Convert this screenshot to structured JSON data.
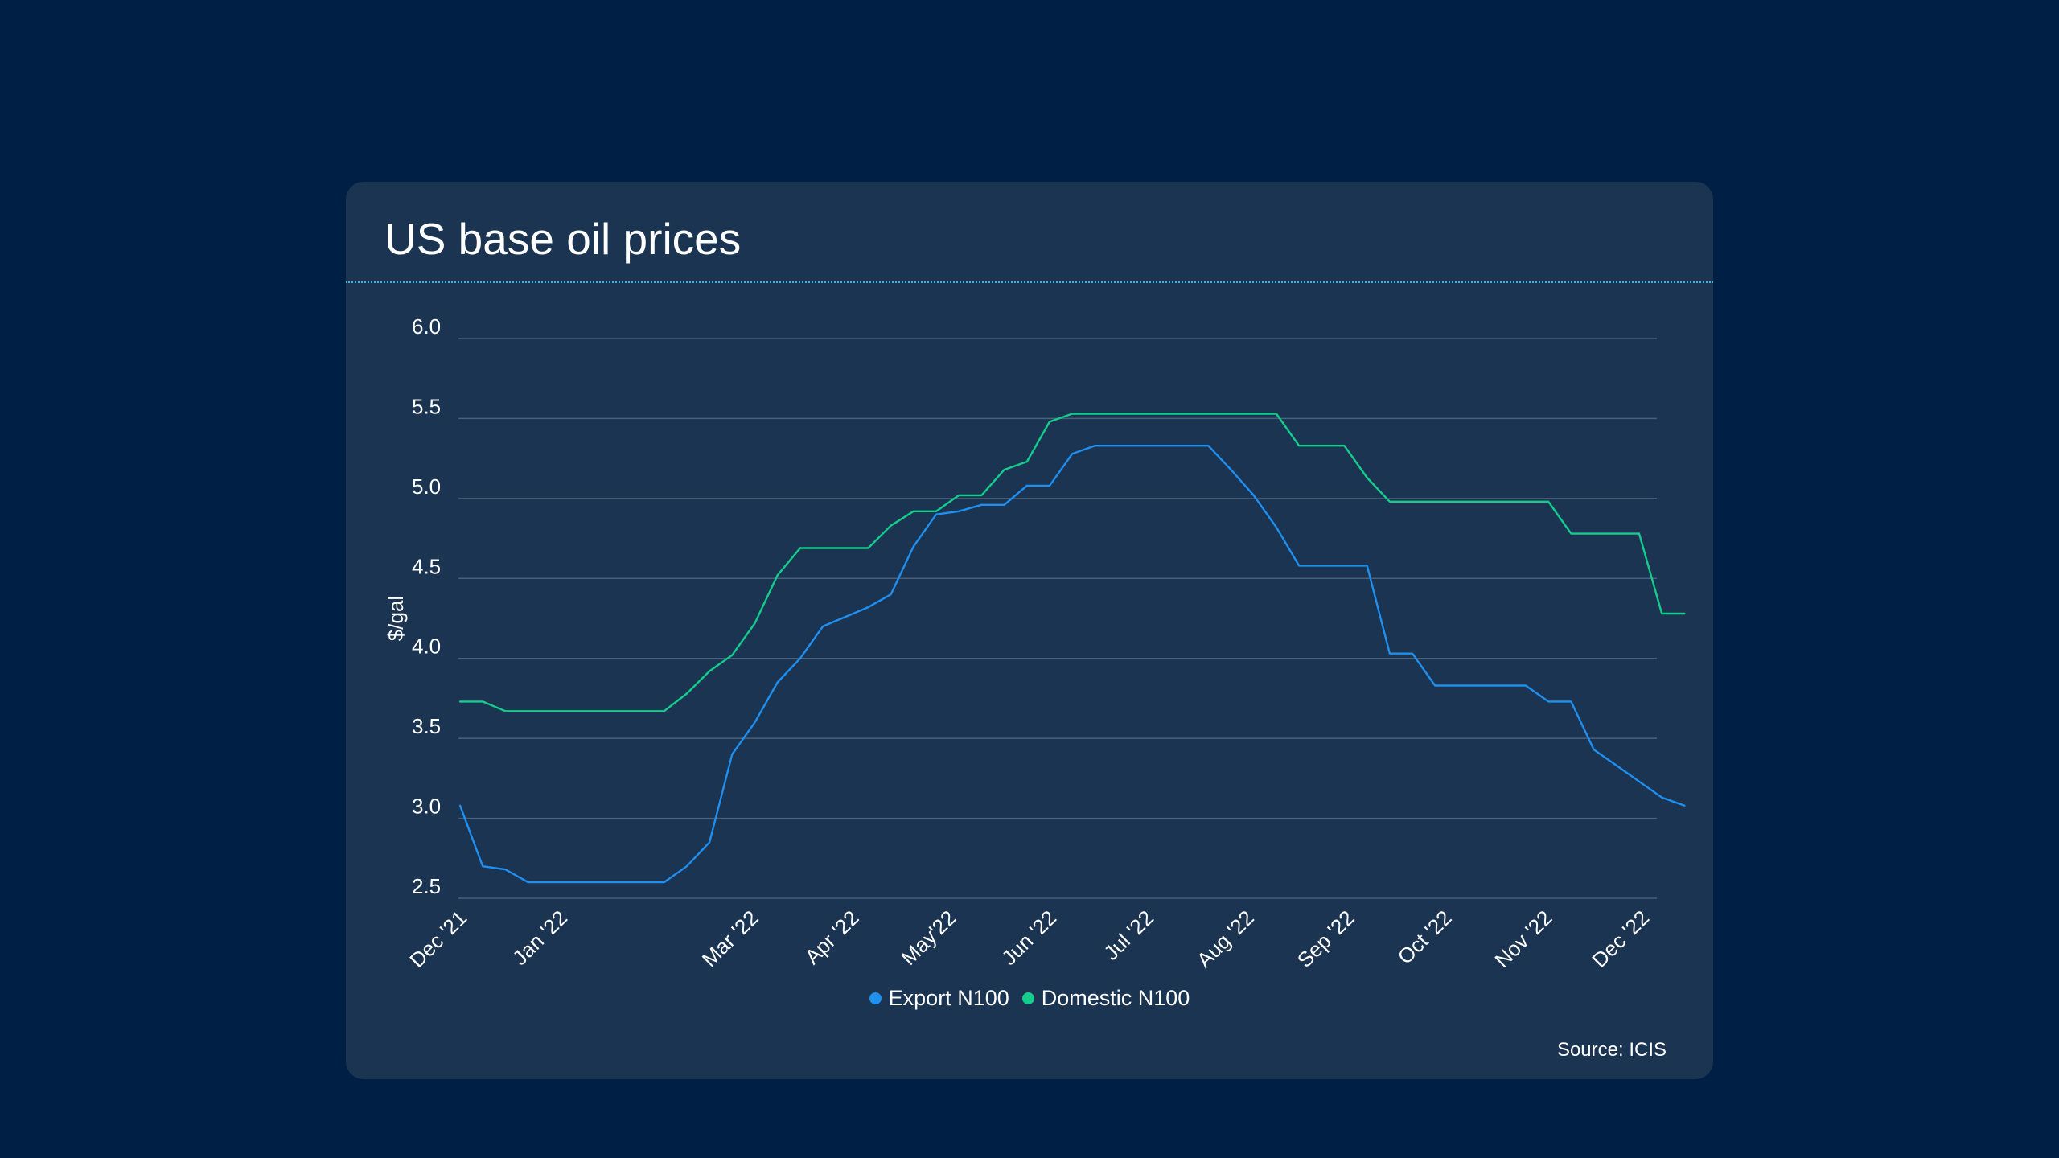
{
  "chart_data": {
    "type": "line",
    "title": "US base oil prices",
    "ylabel": "$/gal",
    "xlabel": "",
    "ylim": [
      2.5,
      6.0
    ],
    "yticks": [
      "6.0",
      "5.5",
      "5.0",
      "4.5",
      "4.0",
      "3.5",
      "3.0",
      "2.5"
    ],
    "grid": true,
    "legend_position": "bottom-center",
    "x_tick_labels": [
      "Dec '21",
      "Jan '22",
      "Mar '22",
      "Apr '22",
      "May'22",
      "Jun '22",
      "Jul '22",
      "Aug '22",
      "Sep '22",
      "Oct '22",
      "Nov '22",
      "Dec '22"
    ],
    "x_tick_dates": [
      "2021-12-01",
      "2022-01-01",
      "2022-03-01",
      "2022-04-01",
      "2022-05-01",
      "2022-06-01",
      "2022-07-01",
      "2022-08-01",
      "2022-09-01",
      "2022-10-01",
      "2022-11-01",
      "2022-12-01"
    ],
    "series": [
      {
        "name": "Export N100",
        "color": "#1f8ff0",
        "x": [
          "2021-12-01",
          "2021-12-08",
          "2021-12-15",
          "2021-12-22",
          "2021-12-29",
          "2022-01-05",
          "2022-01-12",
          "2022-01-19",
          "2022-01-26",
          "2022-02-02",
          "2022-02-09",
          "2022-02-16",
          "2022-02-23",
          "2022-03-02",
          "2022-03-09",
          "2022-03-16",
          "2022-03-23",
          "2022-03-30",
          "2022-04-06",
          "2022-04-13",
          "2022-04-20",
          "2022-04-27",
          "2022-05-04",
          "2022-05-11",
          "2022-05-18",
          "2022-05-25",
          "2022-06-01",
          "2022-06-08",
          "2022-06-15",
          "2022-06-22",
          "2022-06-29",
          "2022-07-06",
          "2022-07-13",
          "2022-07-20",
          "2022-07-27",
          "2022-08-03",
          "2022-08-10",
          "2022-08-17",
          "2022-08-24",
          "2022-08-31",
          "2022-09-07",
          "2022-09-14",
          "2022-09-21",
          "2022-09-28",
          "2022-10-05",
          "2022-10-12",
          "2022-10-19",
          "2022-10-26",
          "2022-11-02",
          "2022-11-09",
          "2022-11-16",
          "2022-11-23",
          "2022-11-30",
          "2022-12-07",
          "2022-12-14"
        ],
        "values": [
          3.08,
          2.7,
          2.68,
          2.6,
          2.6,
          2.6,
          2.6,
          2.6,
          2.6,
          2.6,
          2.7,
          2.85,
          3.4,
          3.6,
          3.85,
          4.0,
          4.2,
          4.26,
          4.32,
          4.4,
          4.7,
          4.9,
          4.92,
          4.96,
          4.96,
          5.08,
          5.08,
          5.28,
          5.33,
          5.33,
          5.33,
          5.33,
          5.33,
          5.33,
          5.18,
          5.02,
          4.82,
          4.58,
          4.58,
          4.58,
          4.58,
          4.03,
          4.03,
          3.83,
          3.83,
          3.83,
          3.83,
          3.83,
          3.73,
          3.73,
          3.43,
          3.33,
          3.23,
          3.13,
          3.08
        ]
      },
      {
        "name": "Domestic N100",
        "color": "#14cc8c",
        "x": [
          "2021-12-01",
          "2021-12-08",
          "2021-12-15",
          "2021-12-22",
          "2021-12-29",
          "2022-01-05",
          "2022-01-12",
          "2022-01-19",
          "2022-01-26",
          "2022-02-02",
          "2022-02-09",
          "2022-02-16",
          "2022-02-23",
          "2022-03-02",
          "2022-03-09",
          "2022-03-16",
          "2022-03-23",
          "2022-03-30",
          "2022-04-06",
          "2022-04-13",
          "2022-04-20",
          "2022-04-27",
          "2022-05-04",
          "2022-05-11",
          "2022-05-18",
          "2022-05-25",
          "2022-06-01",
          "2022-06-08",
          "2022-06-15",
          "2022-06-22",
          "2022-06-29",
          "2022-07-06",
          "2022-07-13",
          "2022-07-20",
          "2022-07-27",
          "2022-08-03",
          "2022-08-10",
          "2022-08-17",
          "2022-08-24",
          "2022-08-31",
          "2022-09-07",
          "2022-09-14",
          "2022-09-21",
          "2022-09-28",
          "2022-10-05",
          "2022-10-12",
          "2022-10-19",
          "2022-10-26",
          "2022-11-02",
          "2022-11-09",
          "2022-11-16",
          "2022-11-23",
          "2022-11-30",
          "2022-12-07",
          "2022-12-14"
        ],
        "values": [
          3.73,
          3.73,
          3.67,
          3.67,
          3.67,
          3.67,
          3.67,
          3.67,
          3.67,
          3.67,
          3.78,
          3.92,
          4.02,
          4.22,
          4.52,
          4.69,
          4.69,
          4.69,
          4.69,
          4.83,
          4.92,
          4.92,
          5.02,
          5.02,
          5.18,
          5.23,
          5.48,
          5.53,
          5.53,
          5.53,
          5.53,
          5.53,
          5.53,
          5.53,
          5.53,
          5.53,
          5.53,
          5.33,
          5.33,
          5.33,
          5.13,
          4.98,
          4.98,
          4.98,
          4.98,
          4.98,
          4.98,
          4.98,
          4.98,
          4.78,
          4.78,
          4.78,
          4.78,
          4.28,
          4.28
        ]
      }
    ]
  },
  "source_text": "Source: ICIS"
}
